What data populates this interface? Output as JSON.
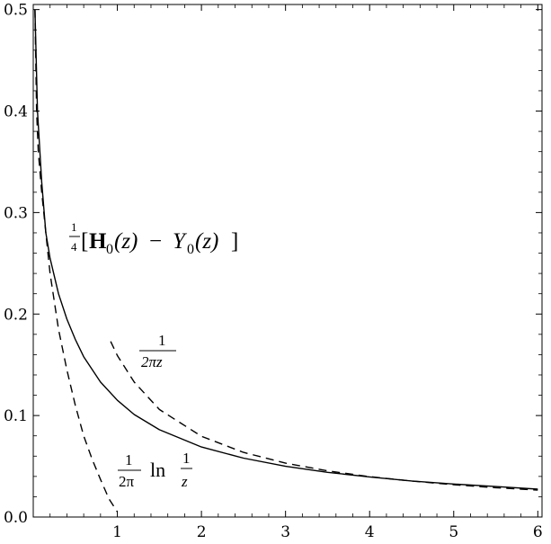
{
  "chart_data": {
    "type": "line",
    "title": "",
    "xlabel": "",
    "ylabel": "",
    "xlim": [
      0,
      6.05
    ],
    "ylim": [
      0,
      0.505
    ],
    "x_ticks": [
      1,
      2,
      3,
      4,
      5,
      6
    ],
    "x_tick_labels": [
      "1",
      "2",
      "3",
      "4",
      "5",
      "6"
    ],
    "y_ticks": [
      0.0,
      0.1,
      0.2,
      0.3,
      0.4,
      0.5
    ],
    "y_tick_labels": [
      "0.0",
      "0.1",
      "0.2",
      "0.3",
      "0.4",
      "0.5"
    ],
    "grid": false,
    "legend": "none",
    "series": [
      {
        "style": "solid",
        "color": "#000000",
        "x": [
          0.02,
          0.05,
          0.1,
          0.15,
          0.2,
          0.3,
          0.4,
          0.5,
          0.6,
          0.8,
          1.0,
          1.2,
          1.5,
          2.0,
          2.5,
          3.0,
          3.5,
          4.0,
          4.5,
          5.0,
          5.5,
          6.0
        ],
        "y": [
          0.5,
          0.4,
          0.33,
          0.28,
          0.255,
          0.22,
          0.195,
          0.175,
          0.158,
          0.133,
          0.115,
          0.101,
          0.086,
          0.069,
          0.058,
          0.05,
          0.044,
          0.0395,
          0.0355,
          0.0325,
          0.03,
          0.0275
        ]
      },
      {
        "style": "dashed",
        "color": "#000000",
        "x": [
          0.02,
          0.04,
          0.06,
          0.1,
          0.15,
          0.2,
          0.3,
          0.4,
          0.5,
          0.6,
          0.7,
          0.8,
          0.9,
          1.0
        ],
        "y": [
          0.5,
          0.4,
          0.36,
          0.32,
          0.28,
          0.24,
          0.185,
          0.145,
          0.11,
          0.08,
          0.057,
          0.037,
          0.018,
          0.005
        ]
      },
      {
        "style": "dashed",
        "color": "#000000",
        "x": [
          0.92,
          1.0,
          1.2,
          1.5,
          2.0,
          2.5,
          3.0,
          3.5,
          4.0,
          4.5,
          5.0,
          5.5,
          6.0
        ],
        "y": [
          0.173,
          0.159,
          0.133,
          0.106,
          0.0796,
          0.0637,
          0.0531,
          0.0455,
          0.0398,
          0.0354,
          0.0318,
          0.0289,
          0.0265
        ]
      }
    ],
    "annotations": [
      {
        "id": "struve",
        "num": "1",
        "den": "4",
        "bracket_open": "[",
        "bold_H": "H",
        "sub0": "0",
        "z1": "(z)",
        "minus": "−",
        "Y": "Y",
        "sub0b": "0",
        "z2": "(z)",
        "bracket_close": "]"
      },
      {
        "id": "asym",
        "num": "1",
        "den": "2πz"
      },
      {
        "id": "log",
        "num": "1",
        "den": "2π",
        "ln": "ln",
        "frac2_num": "1",
        "frac2_den": "z"
      }
    ]
  }
}
